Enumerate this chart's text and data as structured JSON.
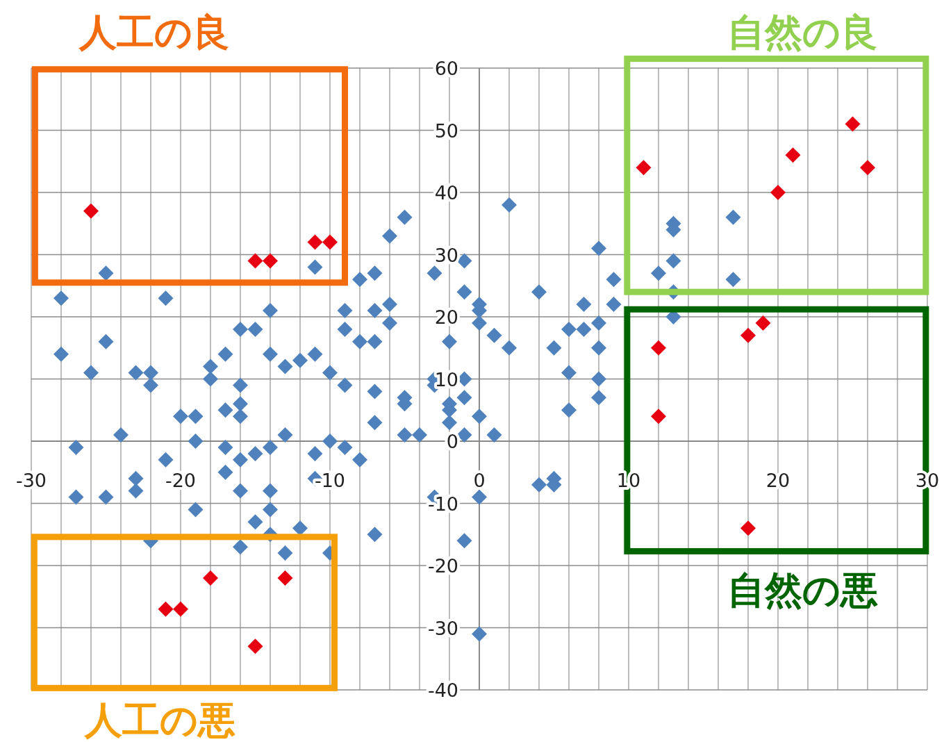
{
  "chart_data": {
    "type": "scatter",
    "marker": "diamond",
    "grid": true,
    "xlim": [
      -30,
      30
    ],
    "ylim": [
      -40,
      60
    ],
    "xticks": [
      -30,
      {
        "value": -28,
        "label": null
      },
      {
        "value": -26,
        "label": null
      },
      {
        "value": -24,
        "label": null
      },
      {
        "value": -22,
        "label": null
      },
      -20,
      {
        "value": -18,
        "label": null
      },
      {
        "value": -16,
        "label": null
      },
      {
        "value": -14,
        "label": null
      },
      {
        "value": -12,
        "label": null
      },
      -10,
      {
        "value": -8,
        "label": null
      },
      {
        "value": -6,
        "label": null
      },
      {
        "value": -4,
        "label": null
      },
      {
        "value": -2,
        "label": null
      },
      0,
      {
        "value": 2,
        "label": null
      },
      {
        "value": 4,
        "label": null
      },
      {
        "value": 6,
        "label": null
      },
      {
        "value": 8,
        "label": null
      },
      10,
      {
        "value": 12,
        "label": null
      },
      {
        "value": 14,
        "label": null
      },
      {
        "value": 16,
        "label": null
      },
      {
        "value": 18,
        "label": null
      },
      20,
      {
        "value": 22,
        "label": null
      },
      {
        "value": 24,
        "label": null
      },
      {
        "value": 26,
        "label": null
      },
      {
        "value": 28,
        "label": null
      },
      30
    ],
    "yticks": [
      -40,
      -30,
      -20,
      -10,
      0,
      10,
      20,
      30,
      40,
      50,
      60
    ],
    "annotations": [
      "人工の良",
      "自然の良",
      "自然の悪",
      "人工の悪"
    ],
    "series": [
      {
        "color": "#4f81bd",
        "x": [
          -28,
          -28,
          -27,
          -27,
          -26,
          -25,
          -25,
          -25,
          -24,
          -23,
          -23,
          -23,
          -22,
          -22,
          -22,
          -21,
          -21,
          -20,
          -19,
          -19,
          -19,
          -18,
          -18,
          -17,
          -17,
          -17,
          -17,
          -16,
          -16,
          -16,
          -16,
          -16,
          -16,
          -16,
          -15,
          -15,
          -15,
          -14,
          -14,
          -14,
          -14,
          -14,
          -14,
          -13,
          -13,
          -13,
          -12,
          -12,
          -11,
          -11,
          -11,
          -11,
          -10,
          -10,
          -10,
          -9,
          -9,
          -9,
          -9,
          -8,
          -8,
          -8,
          -7,
          -7,
          -7,
          -7,
          -7,
          -7,
          -6,
          -6,
          -6,
          -5,
          -5,
          -5,
          -5,
          -4,
          -3,
          -3,
          -3,
          -3,
          -2,
          -2,
          -2,
          -2,
          -1,
          -1,
          -1,
          -1,
          -1,
          -1,
          0,
          0,
          0,
          0,
          0,
          0,
          1,
          1,
          2,
          2,
          4,
          4,
          5,
          5,
          5,
          6,
          6,
          6,
          7,
          7,
          8,
          8,
          8,
          8,
          8,
          9,
          9,
          12,
          13,
          13,
          13,
          13,
          13,
          17,
          17
        ],
        "values": [
          23,
          14,
          -1,
          -9,
          11,
          27,
          16,
          -9,
          1,
          11,
          -6,
          -8,
          11,
          9,
          -16,
          23,
          -3,
          4,
          4,
          0,
          -11,
          12,
          10,
          14,
          5,
          -1,
          -5,
          18,
          9,
          6,
          4,
          -3,
          -8,
          -17,
          18,
          -2,
          -13,
          21,
          14,
          -1,
          -8,
          -11,
          -15,
          12,
          1,
          -18,
          13,
          -14,
          28,
          14,
          -2,
          -6,
          11,
          0,
          -18,
          21,
          18,
          9,
          -1,
          26,
          16,
          -3,
          27,
          21,
          16,
          8,
          3,
          -15,
          33,
          22,
          19,
          36,
          7,
          6,
          1,
          1,
          27,
          10,
          9,
          -9,
          16,
          6,
          5,
          3,
          29,
          24,
          10,
          7,
          1,
          -16,
          22,
          21,
          19,
          4,
          -9,
          -31,
          17,
          1,
          38,
          15,
          24,
          -7,
          15,
          -6,
          -7,
          18,
          11,
          5,
          22,
          18,
          31,
          19,
          15,
          10,
          7,
          26,
          22,
          27,
          35,
          34,
          29,
          24,
          20,
          36,
          26
        ]
      },
      {
        "color": "#e60012",
        "x": [
          -26,
          -15,
          -14,
          -11,
          -10,
          -18,
          -21,
          -20,
          -15,
          -13,
          11,
          25,
          21,
          20,
          26,
          12,
          12,
          18,
          19,
          18
        ],
        "values": [
          37,
          29,
          29,
          32,
          32,
          -22,
          -27,
          -27,
          -33,
          -22,
          44,
          51,
          46,
          40,
          44,
          15,
          4,
          17,
          19,
          -14
        ]
      }
    ]
  }
}
